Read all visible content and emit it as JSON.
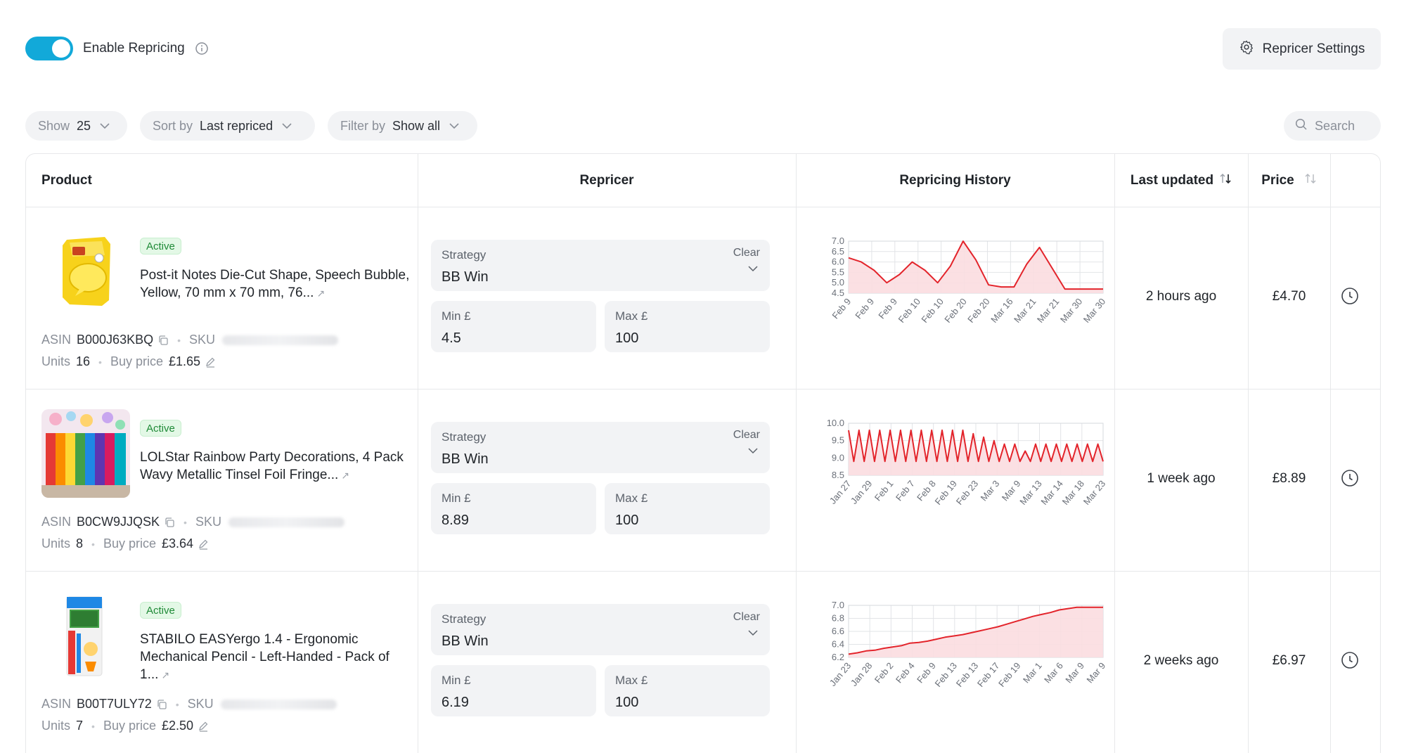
{
  "header": {
    "enable_repricing_label": "Enable Repricing",
    "enable_repricing_on": true,
    "settings_label": "Repricer Settings"
  },
  "filters": {
    "show_label": "Show",
    "show_value": "25",
    "sort_label": "Sort by",
    "sort_value": "Last repriced",
    "filter_label": "Filter by",
    "filter_value": "Show all",
    "search_placeholder": "Search"
  },
  "table": {
    "columns": {
      "product": "Product",
      "repricer": "Repricer",
      "history": "Repricing History",
      "last_updated": "Last updated",
      "price": "Price"
    },
    "rows": [
      {
        "status": "Active",
        "title": "Post-it Notes Die-Cut Shape, Speech Bubble, Yellow, 70 mm x 70 mm, 76...",
        "asin_label": "ASIN",
        "asin": "B000J63KBQ",
        "sku_label": "SKU",
        "units_label": "Units",
        "units": "16",
        "buy_price_label": "Buy price",
        "buy_price": "£1.65",
        "strategy_label": "Strategy",
        "strategy": "BB Win",
        "clear_label": "Clear",
        "min_label": "Min £",
        "min": "4.5",
        "max_label": "Max £",
        "max": "100",
        "last_updated": "2 hours ago",
        "price": "£4.70"
      },
      {
        "status": "Active",
        "title": "LOLStar Rainbow Party Decorations, 4 Pack Wavy Metallic Tinsel Foil Fringe...",
        "asin_label": "ASIN",
        "asin": "B0CW9JJQSK",
        "sku_label": "SKU",
        "units_label": "Units",
        "units": "8",
        "buy_price_label": "Buy price",
        "buy_price": "£3.64",
        "strategy_label": "Strategy",
        "strategy": "BB Win",
        "clear_label": "Clear",
        "min_label": "Min £",
        "min": "8.89",
        "max_label": "Max £",
        "max": "100",
        "last_updated": "1 week ago",
        "price": "£8.89"
      },
      {
        "status": "Active",
        "title": "STABILO EASYergo 1.4 - Ergonomic Mechanical Pencil - Left-Handed - Pack of 1...",
        "asin_label": "ASIN",
        "asin": "B00T7ULY72",
        "sku_label": "SKU",
        "units_label": "Units",
        "units": "7",
        "buy_price_label": "Buy price",
        "buy_price": "£2.50",
        "strategy_label": "Strategy",
        "strategy": "BB Win",
        "clear_label": "Clear",
        "min_label": "Min £",
        "min": "6.19",
        "max_label": "Max £",
        "max": "100",
        "last_updated": "2 weeks ago",
        "price": "£6.97"
      }
    ]
  },
  "colors": {
    "accent": "#12a9d9",
    "line": "#e3242b",
    "fill": "#fbdde0",
    "active_bg": "#e3f8e6",
    "active_fg": "#1f8a37"
  },
  "icons": [
    "info-icon",
    "gear-icon",
    "chevron-down-icon",
    "search-icon",
    "sort-icon",
    "copy-icon",
    "external-link-icon",
    "edit-icon",
    "clock-icon"
  ],
  "chart_data": [
    {
      "type": "area",
      "ylim": [
        4.5,
        7.0
      ],
      "yticks": [
        "7.0",
        "6.5",
        "6.0",
        "5.5",
        "5.0",
        "4.5"
      ],
      "xticks": [
        "Feb 9",
        "Feb 9",
        "Feb 9",
        "Feb 10",
        "Feb 10",
        "Feb 20",
        "Feb 20",
        "Mar 16",
        "Mar 21",
        "Mar 21",
        "Mar 30",
        "Mar 30"
      ],
      "values": [
        6.2,
        6.0,
        5.6,
        5.0,
        5.4,
        6.0,
        5.6,
        5.0,
        5.8,
        7.0,
        6.1,
        4.9,
        4.8,
        4.8,
        5.9,
        6.7,
        5.7,
        4.7,
        4.7,
        4.7,
        4.7
      ]
    },
    {
      "type": "area",
      "ylim": [
        8.5,
        10.0
      ],
      "yticks": [
        "10.0",
        "9.5",
        "9.0",
        "8.5"
      ],
      "xticks": [
        "Jan 27",
        "Jan 29",
        "Feb 1",
        "Feb 7",
        "Feb 8",
        "Feb 19",
        "Feb 23",
        "Mar 3",
        "Mar 9",
        "Mar 13",
        "Mar 14",
        "Mar 18",
        "Mar 23"
      ],
      "values": [
        9.8,
        8.9,
        9.8,
        8.9,
        9.8,
        8.9,
        9.8,
        8.9,
        9.8,
        8.9,
        9.8,
        8.9,
        9.8,
        8.9,
        9.8,
        8.9,
        9.8,
        8.9,
        9.8,
        8.9,
        9.8,
        8.9,
        9.8,
        8.9,
        9.7,
        8.9,
        9.6,
        8.9,
        9.5,
        8.9,
        9.4,
        8.9,
        9.4,
        8.9,
        9.2,
        8.9,
        9.4,
        8.9,
        9.4,
        8.9,
        9.4,
        8.9,
        9.4,
        8.9,
        9.4,
        8.9,
        9.4,
        8.9,
        9.4,
        8.9
      ]
    },
    {
      "type": "area",
      "ylim": [
        6.2,
        7.0
      ],
      "yticks": [
        "7.0",
        "6.8",
        "6.6",
        "6.4",
        "6.2"
      ],
      "xticks": [
        "Jan 23",
        "Jan 28",
        "Feb 2",
        "Feb 4",
        "Feb 9",
        "Feb 13",
        "Feb 13",
        "Feb 17",
        "Feb 19",
        "Mar 1",
        "Mar 6",
        "Mar 9",
        "Mar 9"
      ],
      "values": [
        6.25,
        6.27,
        6.3,
        6.31,
        6.34,
        6.36,
        6.38,
        6.42,
        6.43,
        6.45,
        6.48,
        6.51,
        6.53,
        6.55,
        6.58,
        6.61,
        6.64,
        6.67,
        6.71,
        6.75,
        6.79,
        6.83,
        6.86,
        6.89,
        6.93,
        6.95,
        6.97,
        6.97,
        6.97,
        6.97
      ]
    }
  ]
}
